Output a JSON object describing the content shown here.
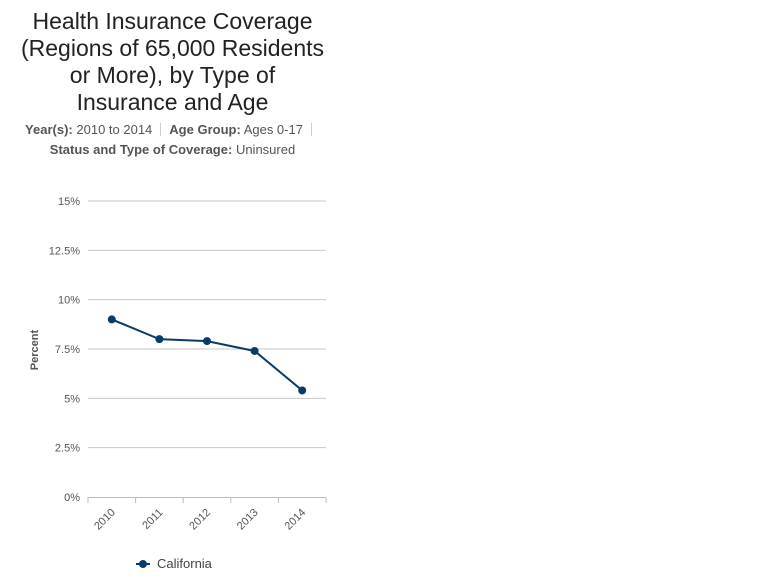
{
  "header": {
    "title_lines": [
      "Health Insurance Coverage",
      "(Regions of 65,000 Residents",
      "or More), by Type of",
      "Insurance and Age"
    ]
  },
  "filters": {
    "years_label": "Year(s):",
    "years_value": "2010 to 2014",
    "age_label": "Age Group:",
    "age_value": "Ages 0-17",
    "status_label": "Status and Type of Coverage:",
    "status_value": "Uninsured"
  },
  "chart_data": {
    "type": "line",
    "title": "Health Insurance Coverage (Regions of 65,000 Residents or More), by Type of Insurance and Age",
    "xlabel": "",
    "ylabel": "Percent",
    "categories": [
      "2010",
      "2011",
      "2012",
      "2013",
      "2014"
    ],
    "series": [
      {
        "name": "California",
        "values": [
          9.0,
          8.0,
          7.9,
          7.4,
          5.4
        ],
        "color": "#0a3a6b"
      }
    ],
    "ylim": [
      0,
      15
    ],
    "yticks": [
      0,
      2.5,
      5,
      7.5,
      10,
      12.5,
      15
    ],
    "ytick_labels": [
      "0%",
      "2.5%",
      "5%",
      "7.5%",
      "10%",
      "12.5%",
      "15%"
    ],
    "grid": true,
    "legend": "bottom"
  }
}
